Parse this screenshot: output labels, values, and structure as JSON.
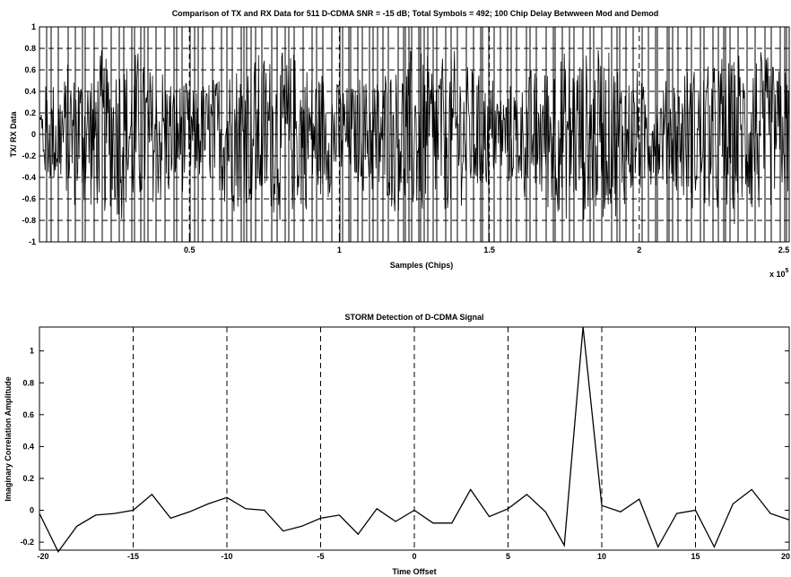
{
  "chart_data": [
    {
      "type": "line",
      "title": "Comparison of TX and RX Data for 511 D-CDMA SNR = -15 dB; Total Symbols = 492; 100 Chip Delay Betwween Mod and Demod",
      "xlabel": "Samples (Chips)",
      "ylabel": "TX/ RX Data",
      "x_exponent_label": "x 10",
      "x_exponent_power": "5",
      "xlim": [
        0,
        2.5
      ],
      "ylim": [
        -1,
        1
      ],
      "xticks": [
        "0.5",
        "1",
        "1.5",
        "2",
        "2.5"
      ],
      "yticks": [
        "1",
        "0.8",
        "0.6",
        "0.4",
        "0.2",
        "0",
        "-0.2",
        "-0.4",
        "-0.6",
        "-0.8",
        "-1"
      ],
      "grid": "dashed",
      "series": [
        {
          "description": "TX square-wave chips between -1 and +1 and noisy RX data; samples too dense to read individually"
        }
      ]
    },
    {
      "type": "line",
      "title": "STORM Detection of D-CDMA Signal",
      "xlabel": "Time Offset",
      "ylabel": "Imaginary Correlation Amplitude",
      "xlim": [
        -20,
        20
      ],
      "ylim": [
        -0.25,
        1.15
      ],
      "xticks": [
        "-20",
        "-15",
        "-10",
        "-5",
        "0",
        "5",
        "10",
        "15",
        "20"
      ],
      "yticks": [
        "1",
        "0.8",
        "0.6",
        "0.4",
        "0.2",
        "0",
        "-0.2"
      ],
      "grid": "dashed vertical",
      "x": [
        -20,
        -19,
        -18,
        -17,
        -16,
        -15,
        -14,
        -13,
        -12,
        -11,
        -10,
        -9,
        -8,
        -7,
        -6,
        -5,
        -4,
        -3,
        -2,
        -1,
        0,
        1,
        2,
        3,
        4,
        5,
        6,
        7,
        8,
        9,
        10,
        11,
        12,
        13,
        14,
        15,
        16,
        17,
        18,
        19,
        20
      ],
      "y": [
        -0.02,
        -0.26,
        -0.1,
        -0.03,
        -0.02,
        0.0,
        0.1,
        -0.05,
        -0.01,
        0.04,
        0.08,
        0.01,
        0.0,
        -0.13,
        -0.1,
        -0.05,
        -0.03,
        -0.15,
        0.01,
        -0.07,
        0.0,
        -0.08,
        -0.08,
        0.13,
        -0.04,
        0.01,
        0.1,
        -0.01,
        -0.22,
        1.15,
        0.03,
        -0.01,
        0.07,
        -0.23,
        -0.02,
        0.0,
        -0.23,
        0.04,
        0.13,
        -0.02,
        -0.06
      ]
    }
  ]
}
